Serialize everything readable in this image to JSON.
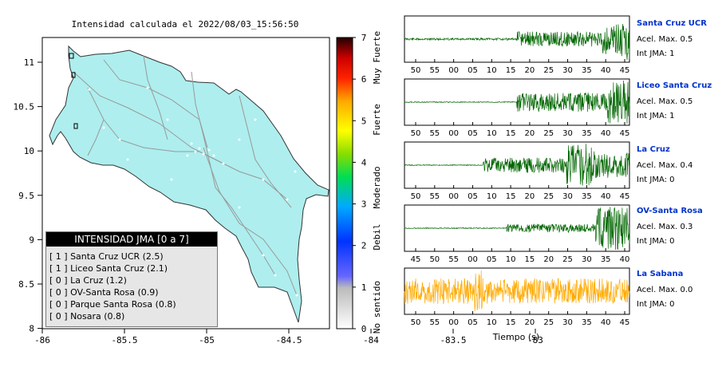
{
  "map": {
    "title": "Intensidad calculada el 2022/08/03_15:56:50",
    "x_ticks": [
      "-86",
      "-85.5",
      "-85",
      "-84.5",
      "-84",
      "-83.5",
      "-83"
    ],
    "y_ticks": [
      "11",
      "10.5",
      "10",
      "9.5",
      "9",
      "8.5",
      "8"
    ],
    "colors": {
      "land": "#aeeeee",
      "roads": "#999999",
      "cities": "#ffffff",
      "border": "#333333"
    }
  },
  "colorbar": {
    "ticks": [
      "0",
      "1",
      "2",
      "3",
      "4",
      "5",
      "6",
      "7"
    ],
    "labels": [
      "No sentido",
      "Debil",
      "Moderado",
      "Fuerte",
      "Muy Fuerte"
    ]
  },
  "legend": {
    "title": "INTENSIDAD JMA [0 a 7]",
    "rows": [
      "[ 1 ]  Santa Cruz UCR (2.5)",
      "[ 1 ]  Liceo Santa Cruz (2.1)",
      "[ 0 ]  La Cruz (1.2)",
      "[ 0 ]  OV-Santa Rosa (0.9)",
      "[ 0 ]  Parque Santa Rosa (0.8)",
      "[ 0 ]  Nosara (0.8)"
    ]
  },
  "chart_data": [
    {
      "type": "line",
      "title": "Santa Cruz UCR",
      "x_ticks": [
        "50",
        "55",
        "00",
        "05",
        "10",
        "15",
        "20",
        "25",
        "30",
        "35",
        "40",
        "45"
      ],
      "annotations": [
        "Acel. Max. 0.5",
        "Int JMA: 1"
      ],
      "color": "#006600"
    },
    {
      "type": "line",
      "title": "Liceo Santa Cruz",
      "x_ticks": [
        "50",
        "55",
        "00",
        "05",
        "10",
        "15",
        "20",
        "25",
        "30",
        "35",
        "40",
        "45"
      ],
      "annotations": [
        "Acel. Max. 0.5",
        "Int JMA: 1"
      ],
      "color": "#006600"
    },
    {
      "type": "line",
      "title": "La Cruz",
      "x_ticks": [
        "50",
        "55",
        "00",
        "05",
        "10",
        "15",
        "20",
        "25",
        "30",
        "35",
        "40",
        "45"
      ],
      "annotations": [
        "Acel. Max. 0.4",
        "Int JMA: 0"
      ],
      "color": "#006600"
    },
    {
      "type": "line",
      "title": "OV-Santa Rosa",
      "x_ticks": [
        "45",
        "50",
        "55",
        "00",
        "05",
        "10",
        "15",
        "20",
        "25",
        "30",
        "35",
        "40"
      ],
      "annotations": [
        "Acel. Max. 0.3",
        "Int JMA: 0"
      ],
      "color": "#006600"
    },
    {
      "type": "line",
      "title": "La Sabana",
      "x_ticks": [
        "50",
        "55",
        "00",
        "05",
        "10",
        "15",
        "20",
        "25",
        "30",
        "35",
        "40",
        "45"
      ],
      "xlabel": "Tiempo (s)",
      "annotations": [
        "Acel. Max. 0.0",
        "Int JMA: 0"
      ],
      "color": "#ffaa00"
    }
  ]
}
